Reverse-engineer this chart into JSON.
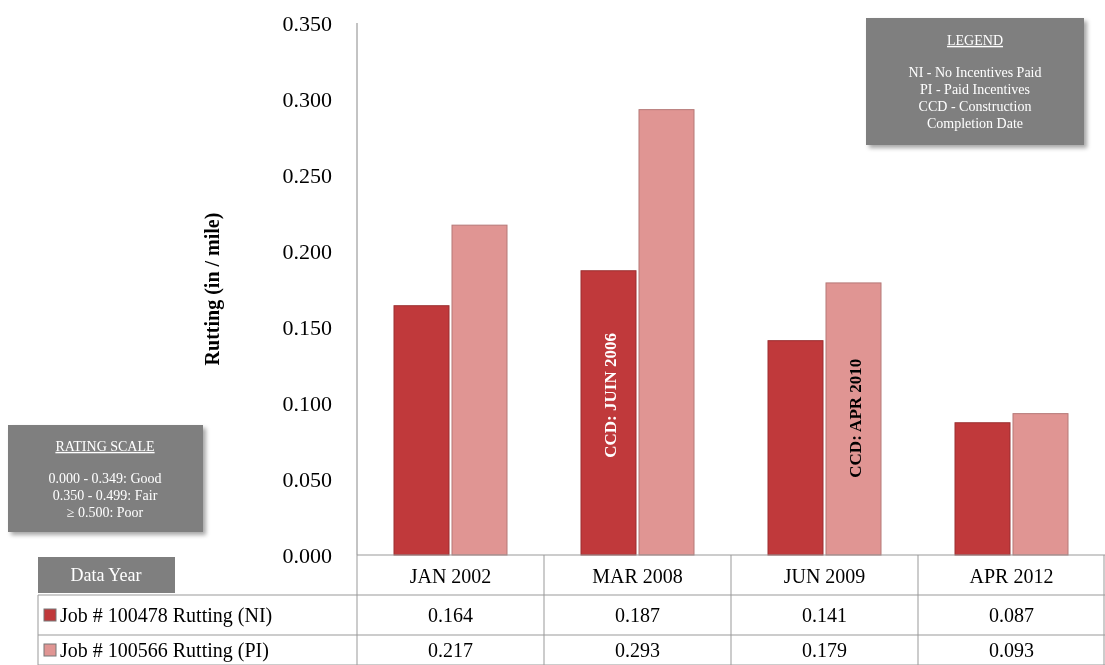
{
  "chart_data": {
    "type": "bar",
    "ylabel": "Rutting (in / mile)",
    "categories": [
      "JAN 2002",
      "MAR 2008",
      "JUN 2009",
      "APR 2012"
    ],
    "series": [
      {
        "name": "Job # 100478 Rutting (NI)",
        "color": "#c0393b",
        "values": [
          0.164,
          0.187,
          0.141,
          0.087
        ]
      },
      {
        "name": "Job # 100566 Rutting (PI)",
        "color": "#e09593",
        "values": [
          0.217,
          0.293,
          0.179,
          0.093
        ]
      }
    ],
    "ylim": [
      0,
      0.35
    ],
    "yticks": [
      {
        "value": 0,
        "label": "0.000"
      },
      {
        "value": 0.05,
        "label": "0.050"
      },
      {
        "value": 0.1,
        "label": "0.100"
      },
      {
        "value": 0.15,
        "label": "0.150"
      },
      {
        "value": 0.2,
        "label": "0.200"
      },
      {
        "value": 0.25,
        "label": "0.250"
      },
      {
        "value": 0.3,
        "label": "0.300"
      },
      {
        "value": 0.35,
        "label": "0.350"
      }
    ],
    "grid": false,
    "legend": "bottom left",
    "data_labels": true,
    "annotations": [
      "LEGEND",
      "NI - No Incentives Paid",
      "PI - Paid Incentives",
      "CCD - Construction Completion Date",
      "RATING SCALE",
      "0.000 - 0.349: Good",
      "0.350 - 0.499: Fair",
      "≥ 0.500: Poor",
      "Data Year",
      {
        "text": "CCD: JUIN 2006",
        "x": "MAR 2008",
        "y": 0.105
      },
      {
        "text": "CCD: APR 2010",
        "x": "JUN 2009",
        "y": 0.09
      }
    ]
  }
}
